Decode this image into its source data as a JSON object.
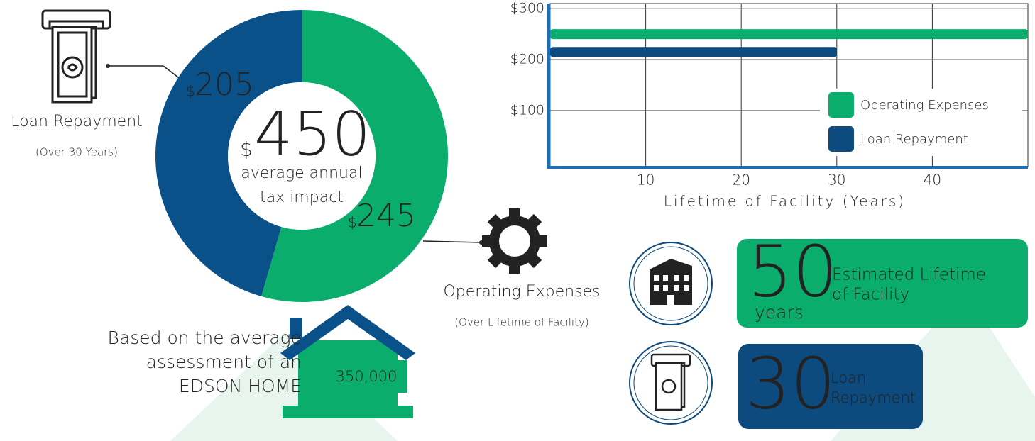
{
  "chart_data": [
    {
      "type": "donut",
      "currency": "$",
      "categories": [
        "Operating Expenses",
        "Loan Repayment"
      ],
      "notes": [
        "(Over Lifetime of Facility)",
        "(Over 30 Years)"
      ],
      "values": [
        245,
        205
      ],
      "colors": [
        "#0aad6b",
        "#0b5189"
      ],
      "center_value": 450,
      "center_label_lines": [
        "average annual",
        "tax impact"
      ]
    },
    {
      "type": "hbar",
      "series": [
        {
          "name": "Operating Expenses",
          "color": "#0aad6b",
          "y": 250,
          "values": [
            50
          ]
        },
        {
          "name": "Loan Repayment",
          "color": "#0d4a7d",
          "y": 215,
          "values": [
            30
          ]
        }
      ],
      "xlim": [
        0,
        50
      ],
      "xticks": [
        10,
        20,
        30,
        40
      ],
      "ylim": [
        -10,
        310
      ],
      "yticks": [
        {
          "value": 100,
          "label": "$100"
        },
        {
          "value": 200,
          "label": "$200"
        },
        {
          "value": 300,
          "label": "$300"
        }
      ],
      "xlabel": "Lifetime of Facility (Years)",
      "grid": true,
      "legend": "lower right"
    }
  ],
  "assessment": {
    "lines": [
      "Based on the average",
      "assessment of an",
      "EDSON HOME"
    ],
    "value": "350,000"
  },
  "facts": [
    {
      "number": 50,
      "unit": "years",
      "lines": [
        "Estimated Lifetime",
        "of Facility"
      ]
    },
    {
      "number": 30,
      "lines": [
        "Loan",
        "Repayment"
      ]
    }
  ]
}
